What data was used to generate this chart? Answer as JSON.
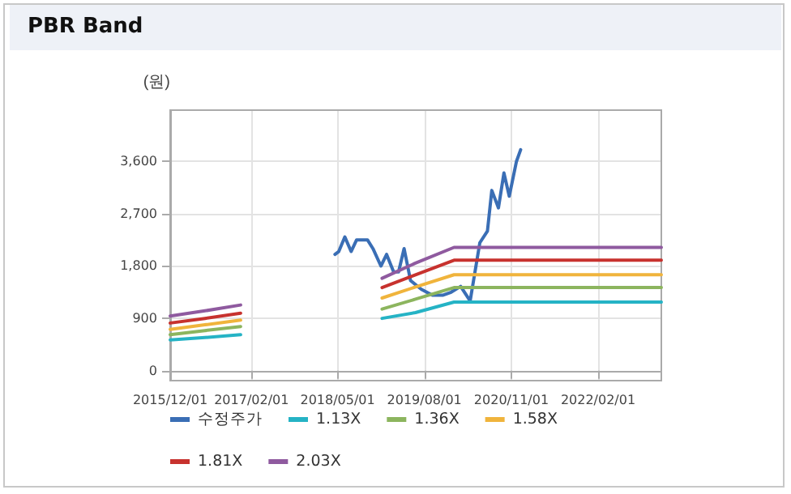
{
  "chart_data": {
    "type": "line",
    "title": "PBR Band",
    "ylabel": "(원)",
    "xlim": [
      "2015-12-01",
      "2022-12-31"
    ],
    "xticks": [
      {
        "value": "2015-12-01",
        "label": "2015/12/01"
      },
      {
        "value": "2017-02-01",
        "label": "2017/02/01"
      },
      {
        "value": "2018-05-01",
        "label": "2018/05/01"
      },
      {
        "value": "2019-08-01",
        "label": "2019/08/01"
      },
      {
        "value": "2020-11-01",
        "label": "2020/11/01"
      },
      {
        "value": "2022-02-01",
        "label": "2022/02/01"
      }
    ],
    "ylim": [
      -170,
      4480
    ],
    "yticks": [
      0,
      {
        "value": 900,
        "label": "900"
      },
      {
        "value": 1800,
        "label": "1,800"
      },
      {
        "value": 2700,
        "label": "2,700"
      },
      {
        "value": 3600,
        "label": "3,600"
      }
    ],
    "grid": true,
    "legend": "bottom",
    "marker": "none",
    "line_style": "solid",
    "series": [
      {
        "name": "수정주가",
        "color": "#3a6eb5",
        "x": [
          "2018-04-17",
          "2018-05-07",
          "2018-06-08",
          "2018-07-11",
          "2018-08-09",
          "2018-10-05",
          "2018-11-03",
          "2018-12-15",
          "2019-01-14",
          "2019-02-20",
          "2019-03-18",
          "2019-04-16",
          "2019-05-20",
          "2019-07-16",
          "2019-09-12",
          "2019-11-08",
          "2019-12-20",
          "2020-02-08",
          "2020-03-29",
          "2020-05-19",
          "2020-06-28",
          "2020-07-21",
          "2020-08-25",
          "2020-09-23",
          "2020-10-21",
          "2020-11-28",
          "2020-12-20"
        ],
        "values": [
          2000,
          2050,
          2300,
          2050,
          2250,
          2250,
          2100,
          1800,
          2000,
          1700,
          1700,
          2100,
          1550,
          1400,
          1300,
          1300,
          1350,
          1450,
          1200,
          2200,
          2400,
          3100,
          2800,
          3400,
          3000,
          3600,
          3800
        ]
      },
      {
        "name": "1.13X",
        "color": "#25b3c5",
        "x": [
          "2015-12-01",
          "2016-06-01",
          "2016-12-06",
          "2017-06-01",
          "2018-12-21",
          "2019-06-15",
          "2020-01-04",
          "2022-12-31"
        ],
        "values": [
          530,
          570,
          620,
          null,
          900,
          1000,
          1180,
          1180
        ]
      },
      {
        "name": "1.36X",
        "color": "#8cb55e",
        "x": [
          "2015-12-01",
          "2016-06-01",
          "2016-12-06",
          "2017-06-01",
          "2018-12-21",
          "2019-06-15",
          "2020-01-04",
          "2022-12-31"
        ],
        "values": [
          620,
          690,
          760,
          null,
          1060,
          1230,
          1430,
          1430
        ]
      },
      {
        "name": "1.58X",
        "color": "#f0b43c",
        "x": [
          "2015-12-01",
          "2016-06-01",
          "2016-12-06",
          "2017-06-01",
          "2018-12-21",
          "2019-06-15",
          "2020-01-04",
          "2022-12-31"
        ],
        "values": [
          710,
          790,
          870,
          null,
          1250,
          1440,
          1650,
          1650
        ]
      },
      {
        "name": "1.81X",
        "color": "#c7322e",
        "x": [
          "2015-12-01",
          "2016-06-01",
          "2016-12-06",
          "2017-06-01",
          "2018-12-21",
          "2019-06-15",
          "2020-01-04",
          "2022-12-31"
        ],
        "values": [
          820,
          900,
          990,
          null,
          1430,
          1650,
          1900,
          1900
        ]
      },
      {
        "name": "2.03X",
        "color": "#8f5a9f",
        "x": [
          "2015-12-01",
          "2016-06-01",
          "2016-12-06",
          "2017-06-01",
          "2018-12-21",
          "2019-06-15",
          "2020-01-04",
          "2022-12-31"
        ],
        "values": [
          940,
          1030,
          1130,
          null,
          1590,
          1850,
          2120,
          2120
        ]
      }
    ]
  }
}
